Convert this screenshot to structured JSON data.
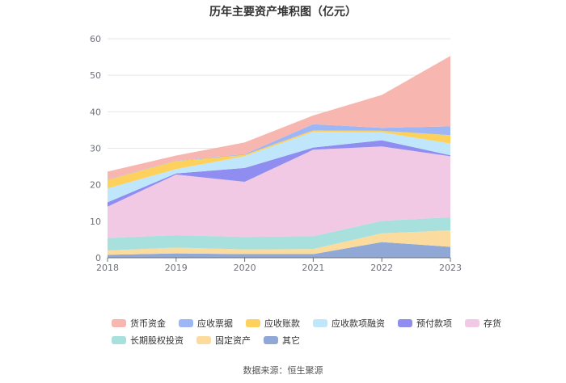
{
  "chart_data": {
    "type": "area",
    "stacked": true,
    "title": "历年主要资产堆积图（亿元）",
    "x": [
      "2018",
      "2019",
      "2020",
      "2021",
      "2022",
      "2023"
    ],
    "ylim": [
      0,
      60
    ],
    "yticks": [
      0,
      10,
      20,
      30,
      40,
      50,
      60
    ],
    "grid": true,
    "legend_position": "bottom",
    "series": [
      {
        "name": "其它",
        "color": "#8fa8d6",
        "values": [
          0.8,
          1.2,
          1.0,
          1.0,
          4.3,
          3.0
        ]
      },
      {
        "name": "固定资产",
        "color": "#fbdc9e",
        "values": [
          1.2,
          1.6,
          1.3,
          1.4,
          2.4,
          4.5
        ]
      },
      {
        "name": "长期股权投资",
        "color": "#a7e0dd",
        "values": [
          3.4,
          3.4,
          3.4,
          3.5,
          3.4,
          3.6
        ]
      },
      {
        "name": "存货",
        "color": "#f1c9e4",
        "values": [
          8.6,
          16.6,
          15.1,
          23.7,
          20.4,
          16.7
        ]
      },
      {
        "name": "预付款项",
        "color": "#8f8df0",
        "values": [
          1.2,
          0.3,
          3.8,
          0.6,
          1.7,
          0.3
        ]
      },
      {
        "name": "应收款项融资",
        "color": "#bfe6fb",
        "values": [
          3.8,
          1.2,
          3.2,
          4.3,
          2.2,
          3.2
        ]
      },
      {
        "name": "应收账款",
        "color": "#fdd15c",
        "values": [
          2.3,
          2.2,
          0.4,
          0.4,
          0.4,
          2.3
        ]
      },
      {
        "name": "应收票据",
        "color": "#9db6f5",
        "values": [
          0.1,
          0.1,
          0.2,
          1.7,
          0.8,
          2.4
        ]
      },
      {
        "name": "货币资金",
        "color": "#f8b6b0",
        "values": [
          2.2,
          1.4,
          3.2,
          2.4,
          9.0,
          19.3
        ]
      }
    ]
  },
  "legend": {
    "row1": [
      {
        "label": "货币资金",
        "color": "#f8b6b0"
      },
      {
        "label": "应收票据",
        "color": "#9db6f5"
      },
      {
        "label": "应收账款",
        "color": "#fdd15c"
      },
      {
        "label": "应收款项融资",
        "color": "#bfe6fb"
      },
      {
        "label": "预付款项",
        "color": "#8f8df0"
      },
      {
        "label": "存货",
        "color": "#f1c9e4"
      }
    ],
    "row2": [
      {
        "label": "长期股权投资",
        "color": "#a7e0dd"
      },
      {
        "label": "固定资产",
        "color": "#fbdc9e"
      },
      {
        "label": "其它",
        "color": "#8fa8d6"
      }
    ]
  },
  "source": "数据来源：恒生聚源"
}
